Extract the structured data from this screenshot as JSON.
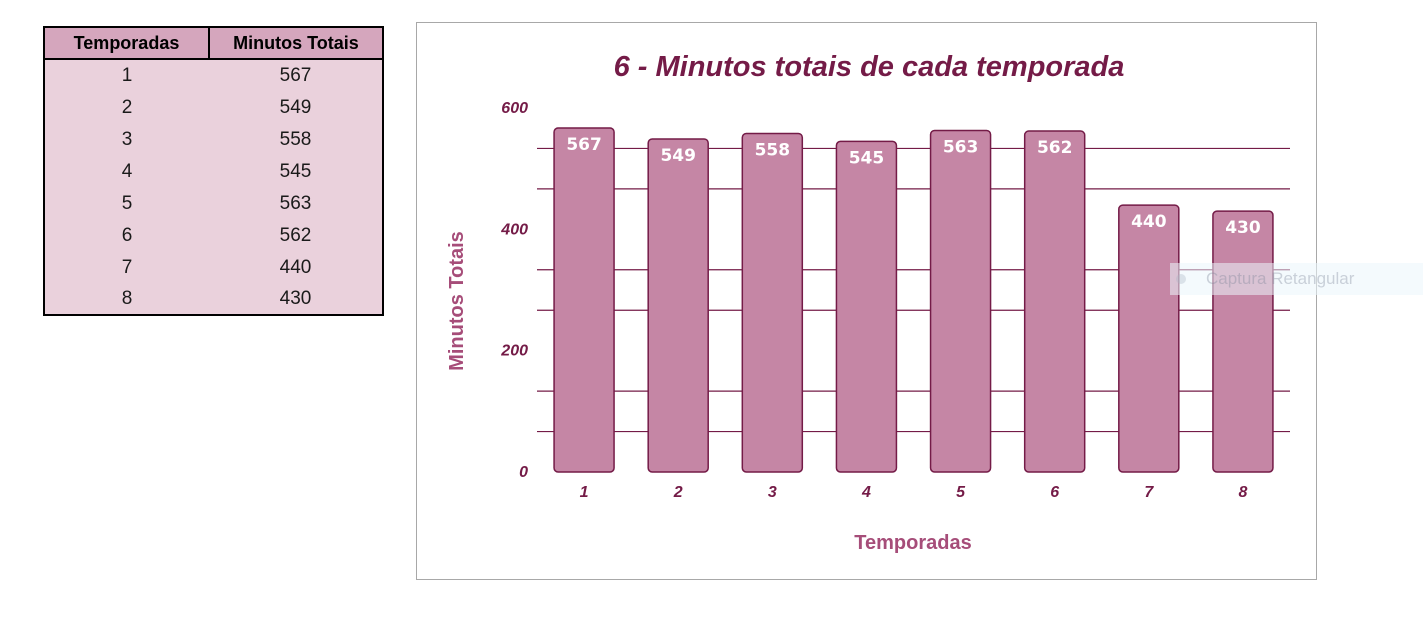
{
  "table": {
    "headers": [
      "Temporadas",
      "Minutos Totais"
    ],
    "rows": [
      [
        "1",
        "567"
      ],
      [
        "2",
        "549"
      ],
      [
        "3",
        "558"
      ],
      [
        "4",
        "545"
      ],
      [
        "5",
        "563"
      ],
      [
        "6",
        "562"
      ],
      [
        "7",
        "440"
      ],
      [
        "8",
        "430"
      ]
    ]
  },
  "chart_data": {
    "type": "bar",
    "title": "6 - Minutos totais de cada temporada",
    "xlabel": "Temporadas",
    "ylabel": "Minutos Totais",
    "categories": [
      "1",
      "2",
      "3",
      "4",
      "5",
      "6",
      "7",
      "8"
    ],
    "values": [
      567,
      549,
      558,
      545,
      563,
      562,
      440,
      430
    ],
    "ylim": [
      0,
      600
    ],
    "yticks": [
      "0",
      "200",
      "400",
      "600"
    ],
    "grid": true,
    "legend": "none",
    "data_labels": true,
    "colors": {
      "bar_fill": "#c586a5",
      "bar_stroke": "#741b47",
      "title": "#741b47",
      "axis_title": "#a64d79",
      "gridline": "#741b47"
    }
  },
  "overlay": {
    "capture_label": "Captura Retangular"
  }
}
